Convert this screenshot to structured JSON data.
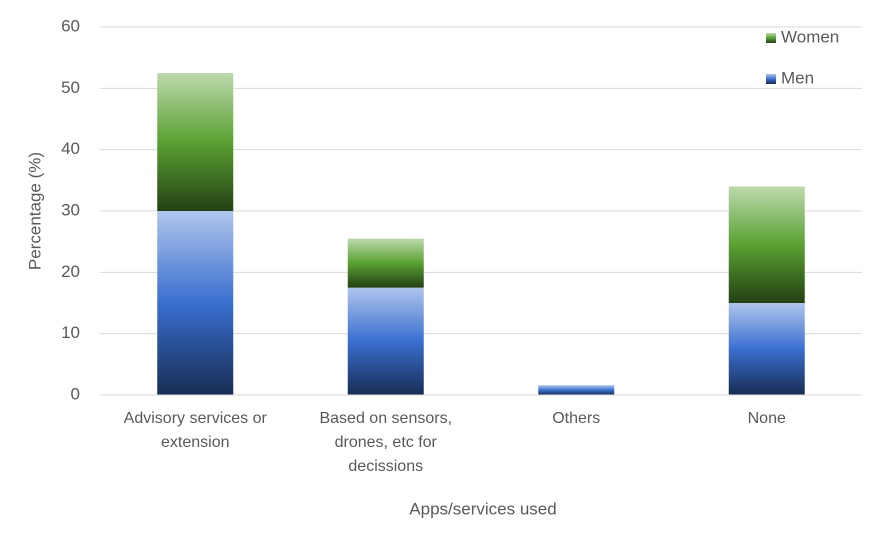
{
  "chart_data": {
    "type": "stacked_bar",
    "x_label": "Apps/services used",
    "y_label": "Percentage (%)",
    "categories": [
      "Advisory services or extension",
      "Based on sensors, drones, etc for decissions",
      "Others",
      "None"
    ],
    "series": [
      {
        "name": "Men",
        "color": "#3a6fd0",
        "values": [
          30,
          17.5,
          1.6,
          15
        ]
      },
      {
        "name": "Women",
        "color": "#5aa132",
        "values": [
          22.5,
          8,
          0,
          19
        ]
      }
    ],
    "ylim": [
      0,
      60
    ],
    "yticks": [
      0,
      10,
      20,
      30,
      40,
      50,
      60
    ],
    "grid": true,
    "legend": "top-right"
  }
}
